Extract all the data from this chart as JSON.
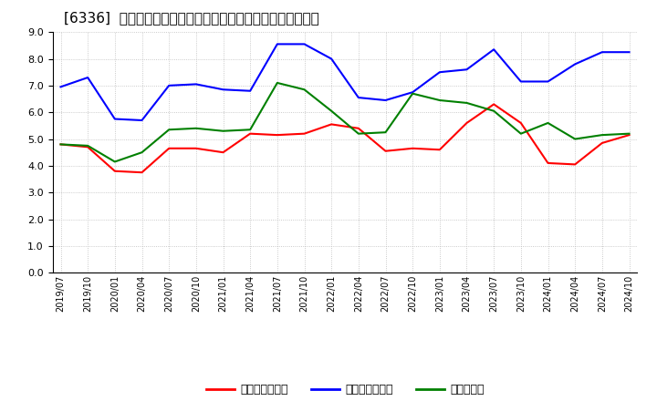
{
  "title": "[6336]  売上債権回転率、買入債務回転率、在庫回転率の推移",
  "x_labels": [
    "2019/07",
    "2019/10",
    "2020/01",
    "2020/04",
    "2020/07",
    "2020/10",
    "2021/01",
    "2021/04",
    "2021/07",
    "2021/10",
    "2022/01",
    "2022/04",
    "2022/07",
    "2022/10",
    "2023/01",
    "2023/04",
    "2023/07",
    "2023/10",
    "2024/01",
    "2024/04",
    "2024/07",
    "2024/10"
  ],
  "売上債権回転率": [
    4.8,
    4.7,
    3.8,
    3.75,
    4.65,
    4.65,
    4.5,
    5.2,
    5.15,
    5.2,
    5.55,
    5.4,
    4.55,
    4.65,
    4.6,
    5.6,
    6.3,
    5.6,
    4.1,
    4.05,
    4.85,
    5.15
  ],
  "買入債務回転率": [
    6.95,
    7.3,
    5.75,
    5.7,
    7.0,
    7.05,
    6.85,
    6.8,
    8.55,
    8.55,
    8.0,
    6.55,
    6.45,
    6.75,
    7.5,
    7.6,
    8.35,
    7.15,
    7.15,
    7.8,
    8.25,
    8.25
  ],
  "在庫回転率": [
    4.8,
    4.75,
    4.15,
    4.5,
    5.35,
    5.4,
    5.3,
    5.35,
    7.1,
    6.85,
    6.05,
    5.2,
    5.25,
    6.7,
    6.45,
    6.35,
    6.05,
    5.2,
    5.6,
    5.0,
    5.15,
    5.2
  ],
  "line_colors": {
    "売上債権回転率": "#ff0000",
    "買入債務回転率": "#0000ff",
    "在庫回転率": "#008000"
  },
  "ylim": [
    0.0,
    9.0
  ],
  "yticks": [
    0.0,
    1.0,
    2.0,
    3.0,
    4.0,
    5.0,
    6.0,
    7.0,
    8.0,
    9.0
  ],
  "bg_color": "#ffffff",
  "grid_color": "#aaaaaa",
  "title_fontsize": 11,
  "legend_labels": [
    "売上債権回転率",
    "買入債務回転率",
    "在庫回転率"
  ]
}
